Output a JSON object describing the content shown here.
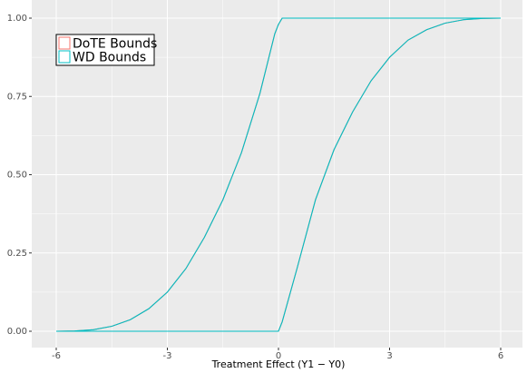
{
  "chart_data": {
    "type": "line",
    "x_label": "Treatment Effect (Y1 − Y0)",
    "x": [
      -6,
      -5.5,
      -5,
      -4.5,
      -4,
      -3.5,
      -3,
      -2.5,
      -2,
      -1.5,
      -1,
      -0.5,
      -0.1,
      0,
      0.1,
      0.5,
      1,
      1.5,
      2,
      2.5,
      3,
      3.5,
      4,
      4.5,
      5,
      5.5,
      6
    ],
    "series": [
      {
        "name": "DoTE Bounds",
        "color": "#F8766D",
        "upper": [
          0,
          0.001,
          0.005,
          0.016,
          0.037,
          0.072,
          0.125,
          0.2,
          0.3,
          0.42,
          0.57,
          0.76,
          0.95,
          0.98,
          1,
          1,
          1,
          1,
          1,
          1,
          1,
          1,
          1,
          1,
          1,
          1,
          1
        ],
        "lower": [
          0,
          0,
          0,
          0,
          0,
          0,
          0,
          0,
          0,
          0,
          0,
          0,
          0,
          0,
          0.03,
          0.2,
          0.42,
          0.58,
          0.7,
          0.8,
          0.875,
          0.93,
          0.963,
          0.984,
          0.995,
          0.999,
          1
        ]
      },
      {
        "name": "WD Bounds",
        "color": "#00BFC4",
        "upper": [
          0,
          0.001,
          0.005,
          0.016,
          0.037,
          0.072,
          0.125,
          0.2,
          0.3,
          0.42,
          0.57,
          0.76,
          0.95,
          0.98,
          1,
          1,
          1,
          1,
          1,
          1,
          1,
          1,
          1,
          1,
          1,
          1,
          1
        ],
        "lower": [
          0,
          0,
          0,
          0,
          0,
          0,
          0,
          0,
          0,
          0,
          0,
          0,
          0,
          0,
          0.03,
          0.2,
          0.42,
          0.58,
          0.7,
          0.8,
          0.875,
          0.93,
          0.963,
          0.984,
          0.995,
          0.999,
          1
        ]
      }
    ],
    "xlim": [
      -6,
      6
    ],
    "xticks": [
      -6,
      -3,
      0,
      3,
      6
    ],
    "ylim": [
      0,
      1
    ],
    "yticks": [
      {
        "value": 0,
        "label": "0.00"
      },
      {
        "value": 0.25,
        "label": "0.25"
      },
      {
        "value": 0.5,
        "label": "0.50"
      },
      {
        "value": 0.75,
        "label": "0.75"
      },
      {
        "value": 1,
        "label": "1.00"
      }
    ],
    "grid": true,
    "legend": "top-left"
  }
}
